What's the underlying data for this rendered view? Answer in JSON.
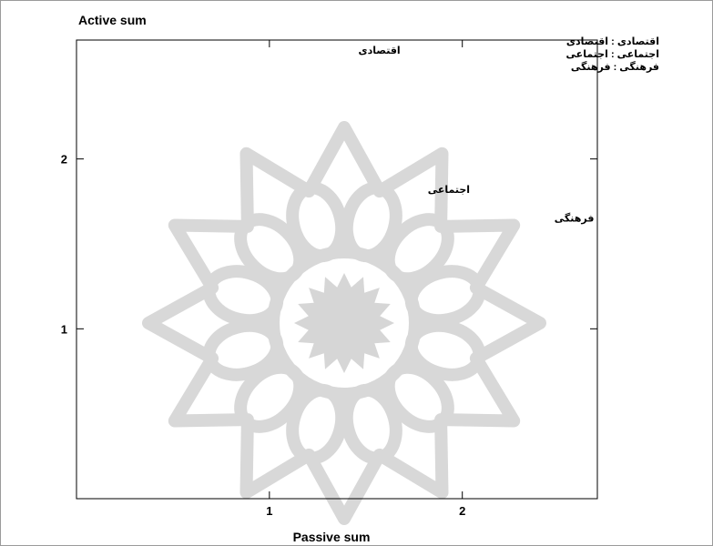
{
  "chart_data": {
    "type": "scatter",
    "ylabel": "Active sum",
    "xlabel": "Passive sum",
    "xlim": [
      0,
      2.7
    ],
    "ylim": [
      0,
      2.7
    ],
    "x_ticks": [
      1,
      2
    ],
    "y_ticks": [
      1,
      2
    ],
    "grid": false,
    "points": [
      {
        "label": "اقتصادی",
        "x": 1.57,
        "y": 2.62
      },
      {
        "label": "اجتماعی",
        "x": 1.93,
        "y": 1.8
      },
      {
        "label": "فرهنگی",
        "x": 2.58,
        "y": 1.63
      }
    ],
    "legend": [
      {
        "code": "اقتصادی",
        "name": "اقتصادی"
      },
      {
        "code": "اجتماعی",
        "name": "اجتماعی"
      },
      {
        "code": "فرهنگی",
        "name": "فرهنگی"
      }
    ],
    "legend_position": "top-right",
    "watermark": "geometric-rosette-watermark"
  }
}
